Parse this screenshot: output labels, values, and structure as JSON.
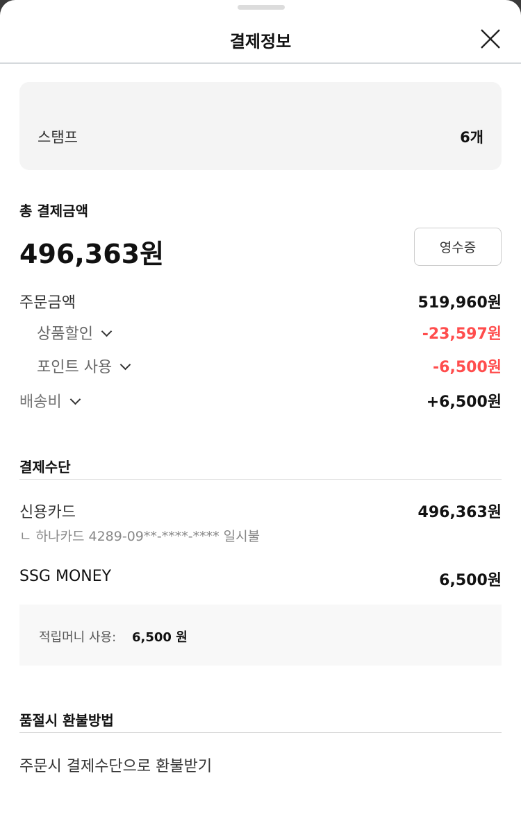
{
  "header": {
    "title": "결제정보",
    "close_icon": "close-icon"
  },
  "stamp": {
    "label": "스탬프",
    "value": "6개"
  },
  "total": {
    "label": "총 결제금액",
    "amount": "496,363원",
    "receipt_button": "영수증"
  },
  "breakdown": [
    {
      "label": "주문금액",
      "value": "519,960원",
      "expandable": false
    },
    {
      "label": "상품할인",
      "value": "-23,597원",
      "expandable": true
    },
    {
      "label": "포인트 사용",
      "value": "-6,500원",
      "expandable": true
    },
    {
      "label": "배송비",
      "value": "+6,500원",
      "expandable": true
    }
  ],
  "payment": {
    "section_title": "결제수단",
    "card": {
      "label": "신용카드",
      "amount": "496,363원",
      "detail": "ㄴ 하나카드  4289-09**-****-**** 일시불"
    },
    "ssg": {
      "label": "SSG MONEY",
      "amount": "6,500원",
      "detail_label": "적립머니 사용:",
      "detail_value": "6,500 원"
    }
  },
  "refund": {
    "section_title": "품절시 환불방법",
    "text": "주문시 결제수단으로 환불받기"
  },
  "colors": {
    "discount": "#ff4d4d",
    "panel": "#f4f4f4"
  }
}
